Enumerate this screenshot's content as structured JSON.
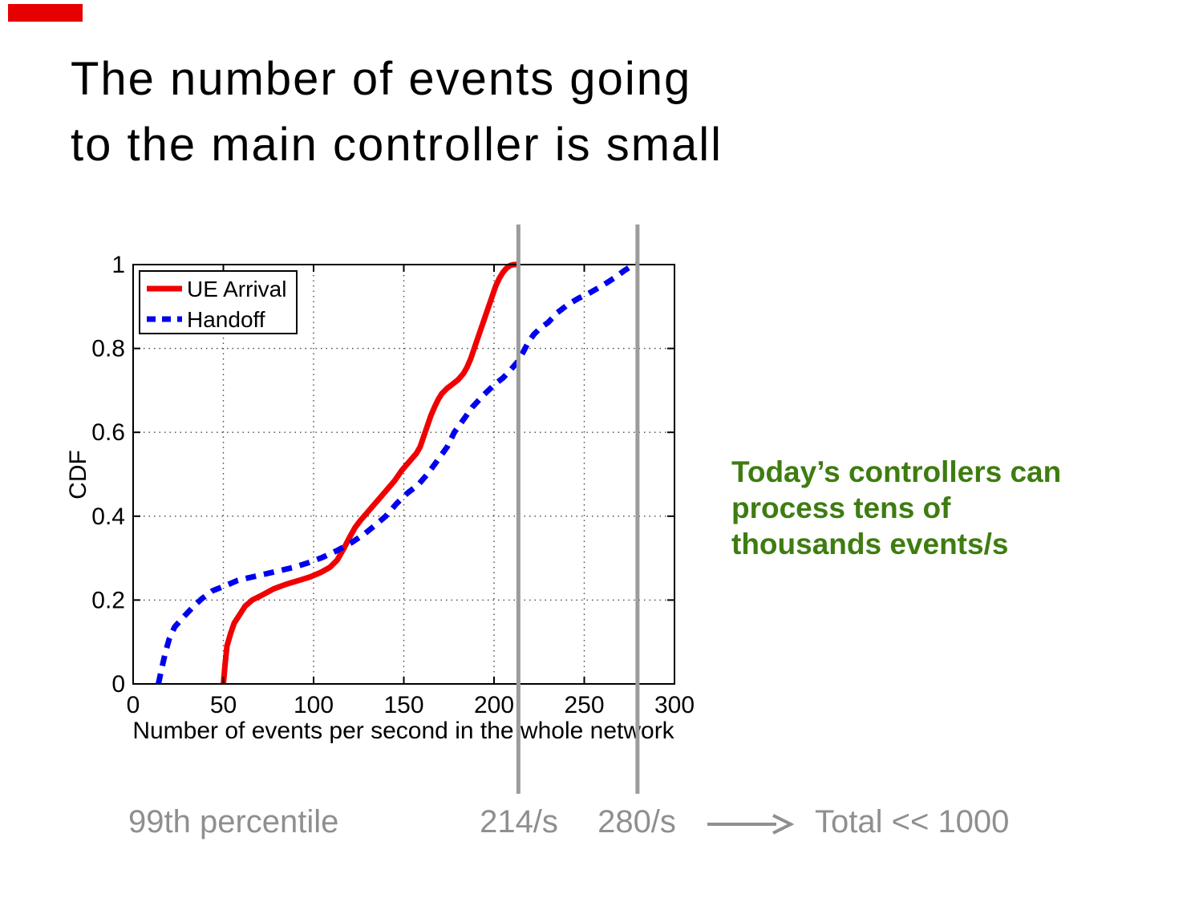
{
  "slide": {
    "accent_color": "#e60000",
    "title": "The number of events going\nto the main controller is small",
    "green_note": "Today’s controllers can\nprocess tens of\nthousands events/s",
    "green_color": "#3e7c10",
    "footer": {
      "label": "99th percentile",
      "value1": "214/s",
      "value2": "280/s",
      "arrow_icon": "right-arrow",
      "conclusion": "Total << 1000",
      "text_color": "#8f8f8f"
    }
  },
  "chart_data": {
    "type": "line",
    "title": "",
    "xlabel": "Number of events per second in the whole network",
    "ylabel": "CDF",
    "xlim": [
      0,
      300
    ],
    "ylim": [
      0,
      1
    ],
    "x_ticks": [
      0,
      50,
      100,
      150,
      200,
      250,
      300
    ],
    "y_ticks": [
      0,
      0.2,
      0.4,
      0.6,
      0.8,
      1
    ],
    "grid": true,
    "legend_position": "top-left",
    "series": [
      {
        "name": "UE Arrival",
        "color": "#f00000",
        "style": "solid",
        "points": [
          [
            50,
            0
          ],
          [
            51,
            0.05
          ],
          [
            52,
            0.09
          ],
          [
            54,
            0.12
          ],
          [
            56,
            0.145
          ],
          [
            59,
            0.165
          ],
          [
            62,
            0.185
          ],
          [
            66,
            0.2
          ],
          [
            72,
            0.213
          ],
          [
            78,
            0.227
          ],
          [
            85,
            0.238
          ],
          [
            92,
            0.247
          ],
          [
            98,
            0.255
          ],
          [
            104,
            0.266
          ],
          [
            109,
            0.278
          ],
          [
            113,
            0.295
          ],
          [
            117,
            0.325
          ],
          [
            120,
            0.35
          ],
          [
            123,
            0.373
          ],
          [
            126,
            0.39
          ],
          [
            129,
            0.405
          ],
          [
            133,
            0.425
          ],
          [
            137,
            0.445
          ],
          [
            141,
            0.465
          ],
          [
            145,
            0.485
          ],
          [
            149,
            0.51
          ],
          [
            153,
            0.53
          ],
          [
            157,
            0.55
          ],
          [
            159,
            0.565
          ],
          [
            161,
            0.59
          ],
          [
            163,
            0.615
          ],
          [
            165,
            0.64
          ],
          [
            167,
            0.66
          ],
          [
            169,
            0.678
          ],
          [
            171,
            0.692
          ],
          [
            174,
            0.705
          ],
          [
            177,
            0.715
          ],
          [
            180,
            0.725
          ],
          [
            183,
            0.74
          ],
          [
            185,
            0.755
          ],
          [
            187,
            0.775
          ],
          [
            189,
            0.8
          ],
          [
            191,
            0.825
          ],
          [
            193,
            0.85
          ],
          [
            195,
            0.875
          ],
          [
            197,
            0.9
          ],
          [
            199,
            0.925
          ],
          [
            201,
            0.95
          ],
          [
            203,
            0.968
          ],
          [
            205,
            0.982
          ],
          [
            207,
            0.992
          ],
          [
            209,
            0.998
          ],
          [
            211,
            1
          ],
          [
            213,
            1
          ]
        ]
      },
      {
        "name": "Handoff",
        "color": "#0000ee",
        "style": "dashed",
        "points": [
          [
            14,
            0
          ],
          [
            16,
            0.04
          ],
          [
            18,
            0.077
          ],
          [
            20,
            0.107
          ],
          [
            23,
            0.136
          ],
          [
            28,
            0.16
          ],
          [
            34,
            0.187
          ],
          [
            38,
            0.203
          ],
          [
            44,
            0.222
          ],
          [
            51,
            0.234
          ],
          [
            58,
            0.247
          ],
          [
            66,
            0.255
          ],
          [
            73,
            0.262
          ],
          [
            81,
            0.27
          ],
          [
            89,
            0.278
          ],
          [
            97,
            0.289
          ],
          [
            105,
            0.302
          ],
          [
            113,
            0.318
          ],
          [
            121,
            0.337
          ],
          [
            128,
            0.357
          ],
          [
            134,
            0.378
          ],
          [
            140,
            0.4
          ],
          [
            146,
            0.43
          ],
          [
            152,
            0.455
          ],
          [
            158,
            0.475
          ],
          [
            163,
            0.5
          ],
          [
            169,
            0.535
          ],
          [
            174,
            0.565
          ],
          [
            178,
            0.6
          ],
          [
            183,
            0.63
          ],
          [
            188,
            0.66
          ],
          [
            194,
            0.688
          ],
          [
            200,
            0.713
          ],
          [
            205,
            0.73
          ],
          [
            209,
            0.748
          ],
          [
            213,
            0.768
          ],
          [
            216,
            0.79
          ],
          [
            219,
            0.815
          ],
          [
            222,
            0.833
          ],
          [
            226,
            0.85
          ],
          [
            230,
            0.862
          ],
          [
            235,
            0.885
          ],
          [
            241,
            0.905
          ],
          [
            247,
            0.92
          ],
          [
            252,
            0.93
          ],
          [
            258,
            0.945
          ],
          [
            263,
            0.958
          ],
          [
            268,
            0.972
          ],
          [
            272,
            0.985
          ],
          [
            276,
            0.996
          ],
          [
            279,
            1
          ]
        ]
      }
    ],
    "marker_lines": [
      {
        "x": 213.5,
        "label": "214/s",
        "color": "#9c9c9c"
      },
      {
        "x": 279.5,
        "label": "280/s",
        "color": "#9c9c9c"
      }
    ]
  }
}
